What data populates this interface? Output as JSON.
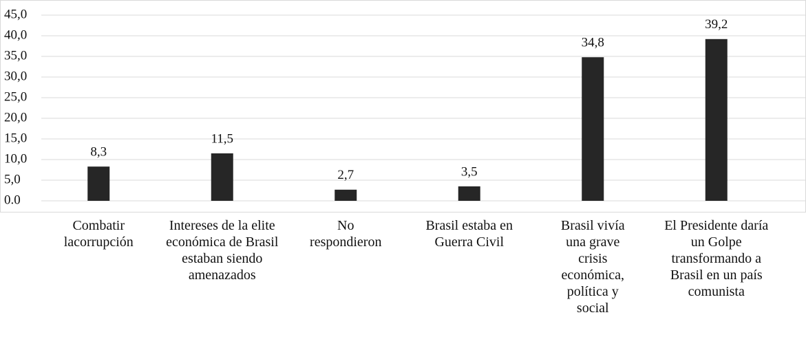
{
  "chart_data": {
    "type": "bar",
    "categories": [
      "Combatir lacorrupción",
      "Intereses de la elite económica de Brasil estaban siendo amenazados",
      "No respondieron",
      "Brasil estaba en Guerra Civil",
      "Brasil vivía una grave crisis económica, política y social",
      "El Presidente daría un Golpe transformando a Brasil en un país comunista"
    ],
    "values": [
      8.3,
      11.5,
      2.7,
      3.5,
      34.8,
      39.2
    ],
    "value_labels": [
      "8,3",
      "11,5",
      "2,7",
      "3,5",
      "34,8",
      "39,2"
    ],
    "color": "#262626",
    "ylim": [
      0,
      45
    ],
    "yticks": [
      {
        "value": 0,
        "label": "0.0"
      },
      {
        "value": 5,
        "label": "5,0"
      },
      {
        "value": 10,
        "label": "10,0"
      },
      {
        "value": 15,
        "label": "15,0"
      },
      {
        "value": 20,
        "label": "20,0"
      },
      {
        "value": 25,
        "label": "25,0"
      },
      {
        "value": 30,
        "label": "30,0"
      },
      {
        "value": 35,
        "label": "35,0"
      },
      {
        "value": 40,
        "label": "40,0"
      },
      {
        "value": 45,
        "label": "45,0"
      }
    ],
    "grid": true
  }
}
